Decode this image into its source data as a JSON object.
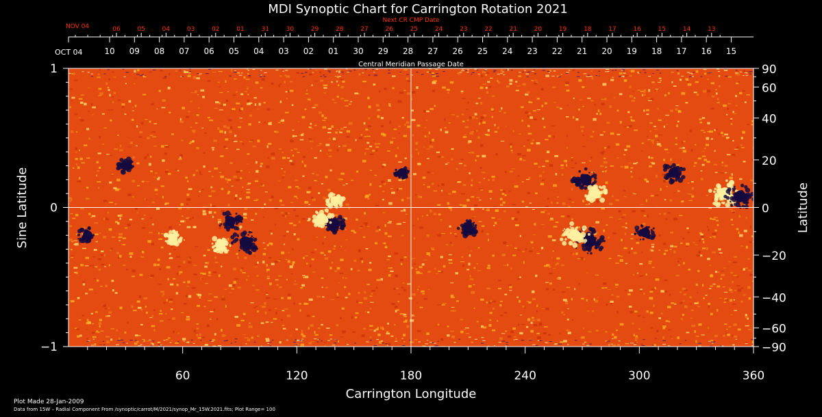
{
  "chart_data": {
    "type": "heatmap",
    "title": "MDI Synoptic Chart for Carrington Rotation 2021",
    "top_axis": {
      "label": "Next CR CMP Date",
      "start_label": "NOV 04",
      "ticks": [
        "06",
        "05",
        "04",
        "03",
        "02",
        "01",
        "31",
        "30",
        "29",
        "28",
        "27",
        "26",
        "25",
        "24",
        "23",
        "22",
        "21",
        "20",
        "19",
        "18",
        "17",
        "16",
        "15",
        "14",
        "13"
      ],
      "color": "#ff3300"
    },
    "date_axis": {
      "label": "Central Meridian Passage Date",
      "start_label": "OCT 04",
      "ticks": [
        "10",
        "09",
        "08",
        "07",
        "06",
        "05",
        "04",
        "03",
        "02",
        "01",
        "30",
        "29",
        "28",
        "27",
        "26",
        "25",
        "24",
        "23",
        "22",
        "21",
        "20",
        "19",
        "18",
        "17",
        "16",
        "15"
      ]
    },
    "xlabel": "Carrington Longitude",
    "xlim": [
      0,
      360
    ],
    "xticks": [
      60,
      120,
      180,
      240,
      300,
      360
    ],
    "ylabel_left": "Sine Latitude",
    "ylim": [
      -1,
      1
    ],
    "yticks_left": [
      "1",
      "0",
      "−1"
    ],
    "ylabel_right": "Latitude",
    "yticks_right": [
      "90",
      "60",
      "40",
      "20",
      "0",
      "−20",
      "−40",
      "−60",
      "−90"
    ],
    "crosshair": {
      "longitude": 180,
      "sine_latitude": 0
    },
    "colors": {
      "background": "#e34b10",
      "positive": "#fff0a0",
      "negative": "#140a40"
    },
    "active_regions": [
      {
        "lon": 345,
        "sinlat": 0.1,
        "polarity": "positive",
        "strength": 1.0
      },
      {
        "lon": 353,
        "sinlat": 0.08,
        "polarity": "negative",
        "strength": 0.9
      },
      {
        "lon": 318,
        "sinlat": 0.25,
        "polarity": "negative",
        "strength": 0.7
      },
      {
        "lon": 272,
        "sinlat": 0.2,
        "polarity": "negative",
        "strength": 0.8
      },
      {
        "lon": 277,
        "sinlat": 0.1,
        "polarity": "positive",
        "strength": 0.7
      },
      {
        "lon": 274,
        "sinlat": -0.24,
        "polarity": "negative",
        "strength": 1.0
      },
      {
        "lon": 266,
        "sinlat": -0.2,
        "polarity": "positive",
        "strength": 0.9
      },
      {
        "lon": 303,
        "sinlat": -0.18,
        "polarity": "negative",
        "strength": 0.6
      },
      {
        "lon": 210,
        "sinlat": -0.15,
        "polarity": "negative",
        "strength": 0.6
      },
      {
        "lon": 93,
        "sinlat": -0.25,
        "polarity": "negative",
        "strength": 0.9
      },
      {
        "lon": 85,
        "sinlat": -0.1,
        "polarity": "negative",
        "strength": 0.7
      },
      {
        "lon": 80,
        "sinlat": -0.27,
        "polarity": "positive",
        "strength": 0.6
      },
      {
        "lon": 140,
        "sinlat": -0.12,
        "polarity": "negative",
        "strength": 0.6
      },
      {
        "lon": 133,
        "sinlat": -0.08,
        "polarity": "positive",
        "strength": 0.8
      },
      {
        "lon": 140,
        "sinlat": 0.05,
        "polarity": "positive",
        "strength": 0.5
      },
      {
        "lon": 10,
        "sinlat": -0.2,
        "polarity": "negative",
        "strength": 0.6
      },
      {
        "lon": 30,
        "sinlat": 0.3,
        "polarity": "negative",
        "strength": 0.5
      },
      {
        "lon": 175,
        "sinlat": 0.25,
        "polarity": "negative",
        "strength": 0.4
      },
      {
        "lon": 55,
        "sinlat": -0.22,
        "polarity": "positive",
        "strength": 0.5
      }
    ]
  },
  "footer": {
    "plot_made": "Plot Made 28-Jan-2009",
    "source_note": "Data from 15W – Radial Component From /synoptic/carrot/M/2021/synop_Mr_15W.2021.fits; Plot Range=  100"
  }
}
